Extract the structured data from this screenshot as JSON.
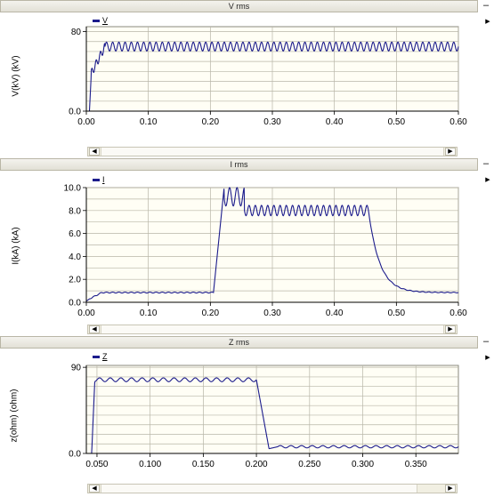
{
  "panels": [
    {
      "title": "V rms",
      "legend": "V",
      "ylabel": "V(kV) (kV)",
      "chart_data": {
        "type": "line",
        "title": "V rms",
        "xlabel": "",
        "ylabel": "V(kV) (kV)",
        "xlim": [
          0,
          0.6
        ],
        "ylim": [
          0,
          85
        ],
        "xticks": [
          "0.00",
          "0.10",
          "0.20",
          "0.30",
          "0.40",
          "0.50",
          "0.60"
        ],
        "yticks": [
          {
            "v": 0,
            "label": "0.0"
          },
          {
            "v": 80,
            "label": "80"
          }
        ],
        "ygrid": [
          0,
          10,
          20,
          30,
          40,
          50,
          60,
          70,
          80
        ],
        "series": [
          {
            "name": "V",
            "color": "#1c1c8c",
            "pattern": "voltage",
            "steady": 65,
            "ripple": 4.5,
            "period": 0.01
          }
        ]
      }
    },
    {
      "title": "I rms",
      "legend": "I",
      "ylabel": "I(kA) (kA)",
      "chart_data": {
        "type": "line",
        "title": "I rms",
        "xlabel": "",
        "ylabel": "I(kA) (kA)",
        "xlim": [
          0,
          0.6
        ],
        "ylim": [
          0,
          10
        ],
        "xticks": [
          "0.00",
          "0.10",
          "0.20",
          "0.30",
          "0.40",
          "0.50",
          "0.60"
        ],
        "yticks": [
          {
            "v": 0,
            "label": "0.0"
          },
          {
            "v": 2,
            "label": "2.0"
          },
          {
            "v": 4,
            "label": "4.0"
          },
          {
            "v": 6,
            "label": "6.0"
          },
          {
            "v": 8,
            "label": "8.0"
          },
          {
            "v": 10,
            "label": "10.0"
          }
        ],
        "ygrid": [
          0,
          1,
          2,
          3,
          4,
          5,
          6,
          7,
          8,
          9,
          10
        ],
        "series": [
          {
            "name": "I",
            "color": "#1c1c8c",
            "pattern": "current",
            "pre_fault": 0.85,
            "fault_start": 0.21,
            "fault_end": 0.455,
            "fault_level": 8.0,
            "ripple": 0.45,
            "period": 0.01
          }
        ]
      }
    },
    {
      "title": "Z rms",
      "legend": "Z",
      "ylabel": "z(ohm) (ohm)",
      "chart_data": {
        "type": "line",
        "title": "Z rms",
        "xlabel": "",
        "ylabel": "z(ohm) (ohm)",
        "xlim": [
          0.04,
          0.39
        ],
        "ylim": [
          0,
          92
        ],
        "xticks": [
          "0.050",
          "0.100",
          "0.150",
          "0.200",
          "0.250",
          "0.300",
          "0.350"
        ],
        "yticks": [
          {
            "v": 0,
            "label": "0.0"
          },
          {
            "v": 90,
            "label": "90"
          }
        ],
        "ygrid": [
          0,
          10,
          20,
          30,
          40,
          50,
          60,
          70,
          80,
          90
        ],
        "series": [
          {
            "name": "Z",
            "color": "#1c1c8c",
            "pattern": "impedance",
            "pre_fault": 77,
            "fault_start": 0.2,
            "post_fault": 7,
            "ripple": 2,
            "period": 0.01
          }
        ]
      }
    }
  ],
  "colors": {
    "plot_bg": "#fffef5",
    "grid": "#b8b6a8",
    "line": "#1c1c8c",
    "titlebar": "#e8e6dc"
  },
  "icons": {
    "minimize": "minus-icon",
    "expand": "right-triangle-icon",
    "scroll_left": "left-arrow-icon",
    "scroll_right": "right-arrow-icon"
  }
}
